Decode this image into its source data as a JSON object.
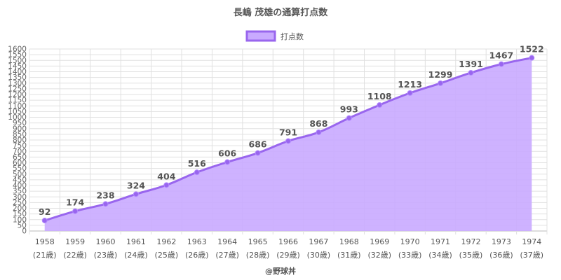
{
  "chart_data": {
    "type": "area",
    "title": "長嶋 茂雄の通算打点数",
    "legend": {
      "label": "打点数",
      "position": "top"
    },
    "series": [
      {
        "name": "打点数",
        "values": [
          92,
          174,
          238,
          324,
          404,
          516,
          606,
          686,
          791,
          868,
          993,
          1108,
          1213,
          1299,
          1391,
          1467,
          1522
        ]
      }
    ],
    "categories": [
      "1958",
      "1959",
      "1960",
      "1961",
      "1962",
      "1963",
      "1964",
      "1965",
      "1966",
      "1967",
      "1968",
      "1969",
      "1970",
      "1971",
      "1972",
      "1973",
      "1974"
    ],
    "age_labels": [
      "(21歳)",
      "(22歳)",
      "(23歳)",
      "(24歳)",
      "(25歳)",
      "(26歳)",
      "(27歳)",
      "(28歳)",
      "(29歳)",
      "(30歳)",
      "(31歳)",
      "(32歳)",
      "(33歳)",
      "(34歳)",
      "(35歳)",
      "(36歳)",
      "(37歳)"
    ],
    "ylim": [
      0,
      1600
    ],
    "ytick_step": 50,
    "grid": true,
    "colors": {
      "line": "#9966ee",
      "fill": "#c9aaff",
      "grid": "#e0e0e0"
    }
  },
  "credit": "@野球丼"
}
